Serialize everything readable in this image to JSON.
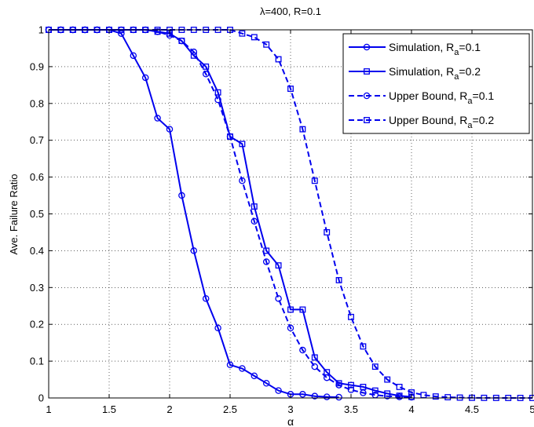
{
  "chart_data": {
    "type": "line",
    "title": "λ=400, R=0.1",
    "xlabel": "α",
    "ylabel": "Ave. Failure Ratio",
    "xlim": [
      1,
      5
    ],
    "ylim": [
      0,
      1
    ],
    "xticks": [
      1,
      1.5,
      2,
      2.5,
      3,
      3.5,
      4,
      4.5,
      5
    ],
    "xtick_labels": [
      "1",
      "1.5",
      "2",
      "2.5",
      "3",
      "3.5",
      "4",
      "4.5",
      "5"
    ],
    "yticks": [
      0,
      0.1,
      0.2,
      0.3,
      0.4,
      0.5,
      0.6,
      0.7,
      0.8,
      0.9,
      1
    ],
    "ytick_labels": [
      "0",
      "0.1",
      "0.2",
      "0.3",
      "0.4",
      "0.5",
      "0.6",
      "0.7",
      "0.8",
      "0.9",
      "1"
    ],
    "grid": true,
    "legend_position": "top-right",
    "line_color": "#0000ee",
    "series": [
      {
        "name": "Simulation, R",
        "name_sub": "a",
        "name_tail": "=0.1",
        "marker": "circle",
        "dash": "solid",
        "x": [
          1,
          1.1,
          1.2,
          1.3,
          1.4,
          1.5,
          1.6,
          1.7,
          1.8,
          1.9,
          2,
          2.1,
          2.2,
          2.3,
          2.4,
          2.5,
          2.6,
          2.7,
          2.8,
          2.9,
          3,
          3.1,
          3.2,
          3.3,
          3.4
        ],
        "y": [
          1,
          1,
          1,
          1,
          1,
          1,
          0.99,
          0.93,
          0.87,
          0.76,
          0.73,
          0.55,
          0.4,
          0.27,
          0.19,
          0.09,
          0.08,
          0.06,
          0.04,
          0.02,
          0.01,
          0.01,
          0.005,
          0.003,
          0.002
        ]
      },
      {
        "name": "Simulation, R",
        "name_sub": "a",
        "name_tail": "=0.2",
        "marker": "square",
        "dash": "solid",
        "x": [
          1,
          1.1,
          1.2,
          1.3,
          1.4,
          1.5,
          1.6,
          1.7,
          1.8,
          1.9,
          2,
          2.1,
          2.2,
          2.3,
          2.4,
          2.5,
          2.6,
          2.7,
          2.8,
          2.9,
          3,
          3.1,
          3.2,
          3.3,
          3.4,
          3.5,
          3.6,
          3.7,
          3.8,
          3.9,
          4
        ],
        "y": [
          1,
          1,
          1,
          1,
          1,
          1,
          1,
          1,
          1,
          0.995,
          0.99,
          0.97,
          0.93,
          0.9,
          0.83,
          0.71,
          0.69,
          0.52,
          0.4,
          0.36,
          0.24,
          0.24,
          0.11,
          0.07,
          0.04,
          0.035,
          0.03,
          0.02,
          0.012,
          0.006,
          0.003
        ]
      },
      {
        "name": "Upper Bound, R",
        "name_sub": "a",
        "name_tail": "=0.1",
        "marker": "circle",
        "dash": "dashed",
        "x": [
          1,
          1.1,
          1.2,
          1.3,
          1.4,
          1.5,
          1.6,
          1.7,
          1.8,
          1.9,
          2,
          2.1,
          2.2,
          2.3,
          2.4,
          2.5,
          2.6,
          2.7,
          2.8,
          2.9,
          3,
          3.1,
          3.2,
          3.3,
          3.4,
          3.5,
          3.6,
          3.7,
          3.8,
          3.9,
          4
        ],
        "y": [
          1,
          1,
          1,
          1,
          1,
          1,
          1,
          1,
          1,
          0.995,
          0.985,
          0.97,
          0.94,
          0.88,
          0.81,
          0.71,
          0.59,
          0.48,
          0.37,
          0.27,
          0.19,
          0.13,
          0.085,
          0.055,
          0.035,
          0.022,
          0.014,
          0.008,
          0.005,
          0.003,
          0.002
        ]
      },
      {
        "name": "Upper Bound, R",
        "name_sub": "a",
        "name_tail": "=0.2",
        "marker": "square",
        "dash": "dashed",
        "x": [
          1,
          1.1,
          1.2,
          1.3,
          1.4,
          1.5,
          1.6,
          1.7,
          1.8,
          1.9,
          2,
          2.1,
          2.2,
          2.3,
          2.4,
          2.5,
          2.6,
          2.7,
          2.8,
          2.9,
          3,
          3.1,
          3.2,
          3.3,
          3.4,
          3.5,
          3.6,
          3.7,
          3.8,
          3.9,
          4,
          4.1,
          4.2,
          4.3,
          4.4,
          4.5,
          4.6,
          4.7,
          4.8,
          4.9,
          5
        ],
        "y": [
          1,
          1,
          1,
          1,
          1,
          1,
          1,
          1,
          1,
          1,
          1,
          1,
          1,
          1,
          1,
          1,
          0.99,
          0.98,
          0.96,
          0.92,
          0.84,
          0.73,
          0.59,
          0.45,
          0.32,
          0.22,
          0.14,
          0.085,
          0.05,
          0.03,
          0.015,
          0.008,
          0.004,
          0.002,
          0.001,
          0.0005,
          0.0003,
          0.0002,
          0.0001,
          0.0001,
          0.0001
        ]
      }
    ]
  }
}
